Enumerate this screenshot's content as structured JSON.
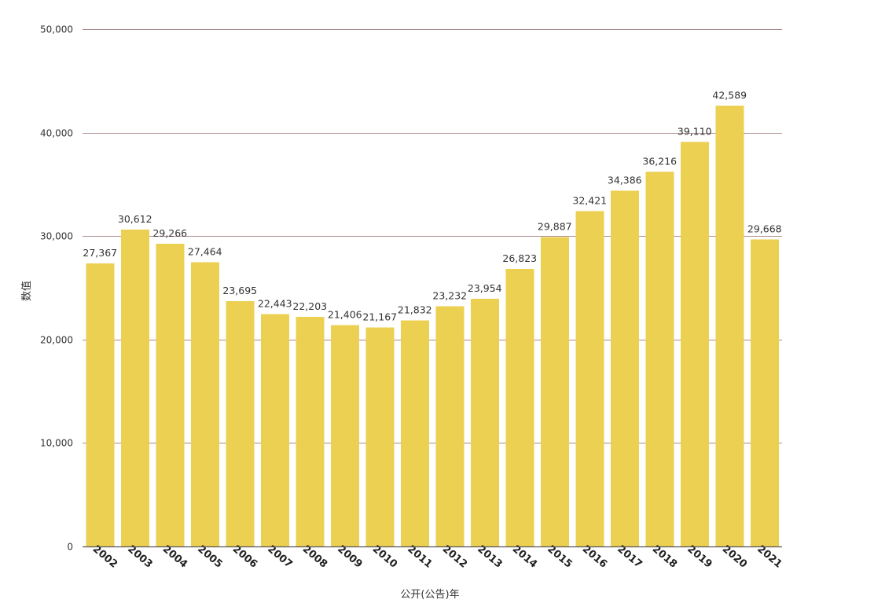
{
  "chart_data": {
    "type": "bar",
    "categories": [
      "2002",
      "2003",
      "2004",
      "2005",
      "2006",
      "2007",
      "2008",
      "2009",
      "2010",
      "2011",
      "2012",
      "2013",
      "2014",
      "2015",
      "2016",
      "2017",
      "2018",
      "2019",
      "2020",
      "2021"
    ],
    "values": [
      27367,
      30612,
      29266,
      27464,
      23695,
      22443,
      22203,
      21406,
      21167,
      21832,
      23232,
      23954,
      26823,
      29887,
      32421,
      34386,
      36216,
      39110,
      42589,
      29668
    ],
    "data_labels": [
      "27,367",
      "30,612",
      "29,266",
      "27,464",
      "23,695",
      "22,443",
      "22,203",
      "21,406",
      "21,167",
      "21,832",
      "23,232",
      "23,954",
      "26,823",
      "29,887",
      "32,421",
      "34,386",
      "36,216",
      "39,110",
      "42,589",
      "29,668"
    ],
    "y_ticks": [
      0,
      10000,
      20000,
      30000,
      40000,
      50000
    ],
    "y_tick_labels": [
      "0",
      "10,000",
      "20,000",
      "30,000",
      "40,000",
      "50,000"
    ],
    "title": "",
    "xlabel": "公开(公告)年",
    "ylabel": "数值",
    "ylim": [
      0,
      50000
    ],
    "grid": true,
    "legend": "none",
    "colors": {
      "bar": "#ecd052",
      "grid": "#a98a8a"
    }
  }
}
